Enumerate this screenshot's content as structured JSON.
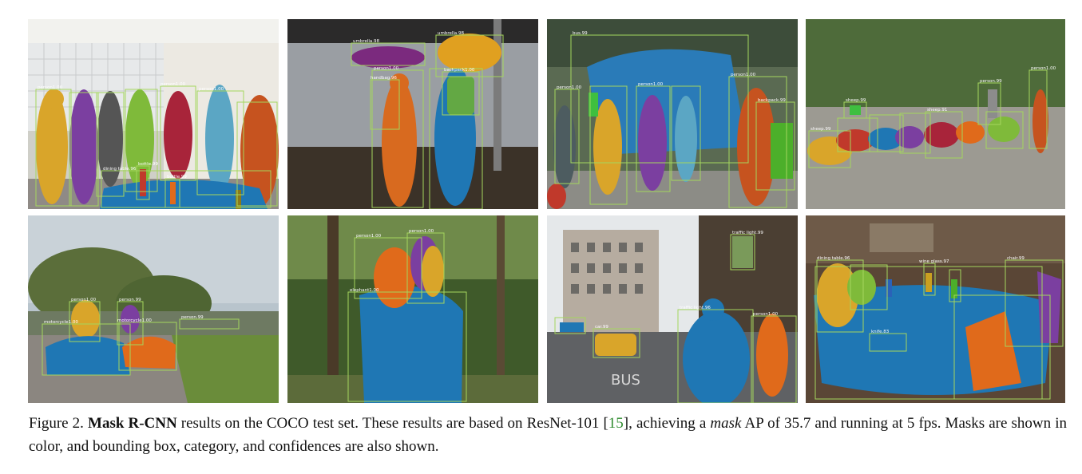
{
  "caption": {
    "figure_label": "Figure 2.",
    "method_name": "Mask R-CNN",
    "text_1": " results on the COCO test set. These results are based on ResNet-101 [",
    "cite": "15",
    "text_2": "], achieving a ",
    "italic_word": "mask",
    "text_3": " AP of 35.7 and running at 5 fps. Masks are shown in color, and bounding box, category, and confidences are also shown."
  },
  "colors": {
    "box": "#a4d65e",
    "mask_blue": "#1f77b4",
    "mask_orange": "#e06a1b",
    "mask_purple": "#7b3fa0",
    "mask_green": "#4caf2a",
    "mask_yellow": "#d9a52a"
  },
  "panels": [
    {
      "id": "p1",
      "labels": [
        "person1.00",
        "person1.00",
        "person1.00",
        "person1.00",
        "person1.00",
        "person1.00",
        "dining table.96",
        "bottle.99",
        "bottle.99",
        "bottle.99"
      ]
    },
    {
      "id": "p2",
      "labels": [
        "umbrella.98",
        "umbrella.98",
        "person1.00",
        "person1.00",
        "handbag.96",
        "backpack1.00"
      ]
    },
    {
      "id": "p3",
      "labels": [
        "bus.99",
        "person1.00",
        "person1.00",
        "person1.00",
        "person1.00",
        "person1.00",
        "person1.00",
        "backpack.99",
        "person.99",
        "person.99"
      ]
    },
    {
      "id": "p4",
      "labels": [
        "person1.00",
        "person.99",
        "sheep.99",
        "sheep.99",
        "sheep.99",
        "sheep.91",
        "sheep1.00",
        "sheep.99",
        "sheep.99"
      ]
    },
    {
      "id": "p5",
      "labels": [
        "person1.00",
        "person.99",
        "motorcycle1.00",
        "motorcycle1.00",
        "person.99"
      ]
    },
    {
      "id": "p6",
      "labels": [
        "person1.00",
        "person1.00",
        "elephant1.00"
      ]
    },
    {
      "id": "p7",
      "labels": [
        "traffic light.96",
        "traffic light.99",
        "traffic light.92",
        "car.99",
        "car.99",
        "person1.00",
        "person.99",
        "person.99"
      ]
    },
    {
      "id": "p8",
      "labels": [
        "dining table.96",
        "chair.99",
        "chair.99",
        "wine glass.97",
        "wine glass.99",
        "wine glass.99",
        "bowl.91",
        "knife.83",
        "chair.96",
        "cup.99"
      ]
    }
  ]
}
